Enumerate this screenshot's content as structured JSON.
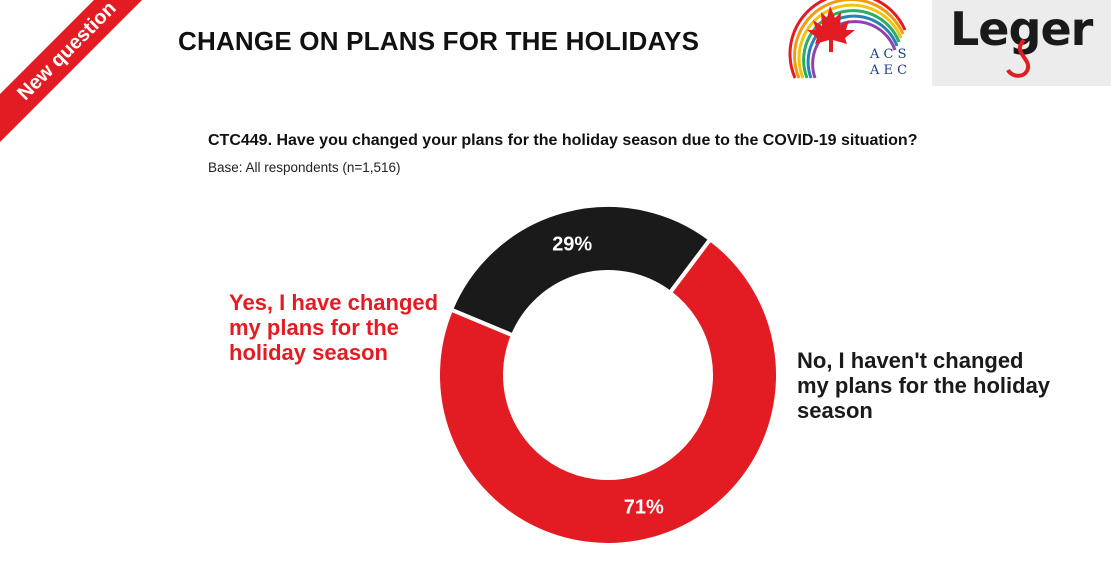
{
  "ribbon": {
    "text": "New question"
  },
  "header": {
    "title": "CHANGE ON PLANS FOR THE HOLIDAYS"
  },
  "logos": {
    "acs_line1": "A C S",
    "acs_line2": "A E C",
    "leger": "Leger"
  },
  "question": {
    "text": "CTC449. Have you changed your plans for the holiday season due to the COVID-19 situation?",
    "base": "Base: All respondents (n=1,516)"
  },
  "chart_data": {
    "type": "pie",
    "subtype": "donut",
    "slices": [
      {
        "label": "Yes, I have changed my plans for the holiday season",
        "value": 71,
        "display": "71%",
        "color": "#e31c23"
      },
      {
        "label": "No, I haven't changed my plans for the holiday season",
        "value": 29,
        "display": "29%",
        "color": "#1a1a1a"
      }
    ]
  }
}
